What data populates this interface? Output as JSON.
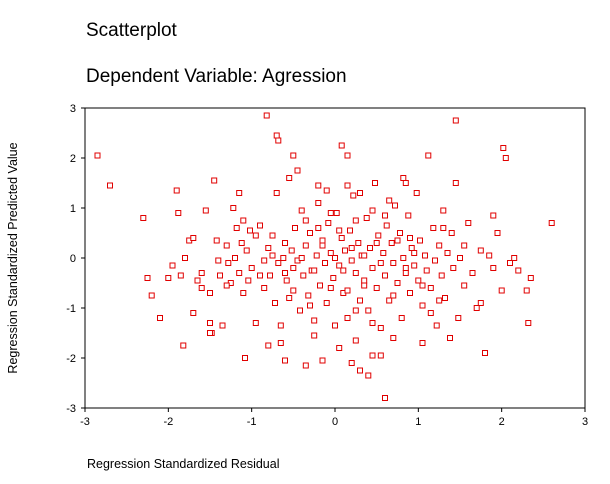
{
  "chart_data": {
    "type": "scatter",
    "title": "Scatterplot",
    "subtitle": "Dependent Variable: Agression",
    "xlabel": "Regression Standardized Residual",
    "ylabel": "Regression Standardized Predicted Value",
    "xlim": [
      -3,
      3
    ],
    "ylim": [
      -3,
      3
    ],
    "xticks": [
      "-3",
      "-2",
      "-1",
      "0",
      "1",
      "2",
      "3"
    ],
    "yticks": [
      "3",
      "2",
      "1",
      "0",
      "-1",
      "-2",
      "-3"
    ],
    "grid": false,
    "legend": "none",
    "marker": "open-square",
    "point_color": "#e00000",
    "points": [
      [
        -2.85,
        2.05
      ],
      [
        -2.7,
        1.45
      ],
      [
        -2.3,
        0.8
      ],
      [
        -2.25,
        -0.4
      ],
      [
        -2.2,
        -0.75
      ],
      [
        -2.1,
        -1.2
      ],
      [
        -2.0,
        -0.4
      ],
      [
        -1.9,
        1.35
      ],
      [
        -1.88,
        0.9
      ],
      [
        -1.85,
        -0.35
      ],
      [
        -1.82,
        -1.75
      ],
      [
        -1.8,
        0.0
      ],
      [
        -1.75,
        0.35
      ],
      [
        -1.7,
        0.4
      ],
      [
        -1.65,
        -0.45
      ],
      [
        -1.6,
        -0.3
      ],
      [
        -1.55,
        0.95
      ],
      [
        -1.5,
        -1.3
      ],
      [
        -1.48,
        -1.5
      ],
      [
        -1.45,
        1.55
      ],
      [
        -1.42,
        0.35
      ],
      [
        -1.4,
        -0.05
      ],
      [
        -1.38,
        -0.35
      ],
      [
        -1.35,
        -1.35
      ],
      [
        -1.3,
        0.25
      ],
      [
        -1.28,
        -0.1
      ],
      [
        -1.25,
        -0.5
      ],
      [
        -1.22,
        1.0
      ],
      [
        -1.2,
        0.0
      ],
      [
        -1.18,
        0.6
      ],
      [
        -1.15,
        -0.3
      ],
      [
        -1.12,
        0.3
      ],
      [
        -1.1,
        -0.7
      ],
      [
        -1.08,
        -2.0
      ],
      [
        -1.06,
        0.15
      ],
      [
        -1.04,
        -0.45
      ],
      [
        -1.02,
        0.55
      ],
      [
        -1.0,
        -0.2
      ],
      [
        -0.95,
        -1.3
      ],
      [
        -0.9,
        0.65
      ],
      [
        -0.85,
        -0.6
      ],
      [
        -0.8,
        0.2
      ],
      [
        -0.78,
        -0.35
      ],
      [
        -0.75,
        0.45
      ],
      [
        -0.72,
        -0.9
      ],
      [
        -0.7,
        1.3
      ],
      [
        -0.68,
        -0.1
      ],
      [
        -0.65,
        -1.7
      ],
      [
        -0.62,
        0.0
      ],
      [
        -0.6,
        0.3
      ],
      [
        -0.58,
        -0.45
      ],
      [
        -0.55,
        -0.8
      ],
      [
        -0.52,
        0.15
      ],
      [
        -0.5,
        -0.2
      ],
      [
        -0.48,
        0.6
      ],
      [
        -0.45,
        -0.05
      ],
      [
        -0.42,
        -1.05
      ],
      [
        -0.4,
        0.95
      ],
      [
        -0.38,
        -0.35
      ],
      [
        -0.35,
        0.25
      ],
      [
        -0.32,
        -0.75
      ],
      [
        -0.3,
        0.5
      ],
      [
        -0.28,
        -0.25
      ],
      [
        -0.25,
        -1.25
      ],
      [
        -0.22,
        0.05
      ],
      [
        -0.2,
        1.1
      ],
      [
        -0.18,
        -0.55
      ],
      [
        -0.15,
        0.35
      ],
      [
        -0.12,
        -0.1
      ],
      [
        -0.1,
        -0.9
      ],
      [
        -0.08,
        0.7
      ],
      [
        -0.05,
        0.1
      ],
      [
        -0.02,
        -0.4
      ],
      [
        0.0,
        0.0
      ],
      [
        0.02,
        0.9
      ],
      [
        0.05,
        -0.15
      ],
      [
        0.08,
        0.4
      ],
      [
        0.1,
        -0.7
      ],
      [
        0.12,
        0.15
      ],
      [
        0.15,
        -1.2
      ],
      [
        0.18,
        0.55
      ],
      [
        0.2,
        -0.05
      ],
      [
        0.22,
        1.25
      ],
      [
        0.25,
        -0.3
      ],
      [
        0.28,
        0.3
      ],
      [
        0.3,
        -0.85
      ],
      [
        0.32,
        0.05
      ],
      [
        0.35,
        -0.45
      ],
      [
        0.38,
        0.8
      ],
      [
        0.4,
        -1.05
      ],
      [
        0.42,
        0.2
      ],
      [
        0.45,
        -0.2
      ],
      [
        0.48,
        1.5
      ],
      [
        0.5,
        -0.6
      ],
      [
        0.52,
        0.45
      ],
      [
        0.55,
        -1.4
      ],
      [
        0.58,
        0.1
      ],
      [
        0.6,
        -0.35
      ],
      [
        0.62,
        0.65
      ],
      [
        0.65,
        -0.85
      ],
      [
        0.68,
        0.3
      ],
      [
        0.7,
        -0.1
      ],
      [
        0.72,
        1.05
      ],
      [
        0.75,
        -0.5
      ],
      [
        0.78,
        0.5
      ],
      [
        0.8,
        -1.2
      ],
      [
        0.82,
        0.0
      ],
      [
        0.85,
        -0.3
      ],
      [
        0.88,
        0.85
      ],
      [
        0.9,
        -0.7
      ],
      [
        0.92,
        0.2
      ],
      [
        0.95,
        -0.15
      ],
      [
        0.98,
        1.3
      ],
      [
        1.0,
        -0.45
      ],
      [
        1.02,
        0.35
      ],
      [
        1.05,
        -0.95
      ],
      [
        1.08,
        0.05
      ],
      [
        1.1,
        -0.25
      ],
      [
        1.12,
        2.05
      ],
      [
        1.15,
        -0.6
      ],
      [
        1.18,
        0.6
      ],
      [
        1.2,
        -0.05
      ],
      [
        1.22,
        -1.35
      ],
      [
        1.25,
        0.25
      ],
      [
        1.28,
        -0.35
      ],
      [
        1.3,
        0.95
      ],
      [
        1.32,
        -0.8
      ],
      [
        1.35,
        0.1
      ],
      [
        1.38,
        -1.6
      ],
      [
        1.4,
        0.5
      ],
      [
        1.42,
        -0.2
      ],
      [
        1.45,
        1.5
      ],
      [
        1.48,
        -1.2
      ],
      [
        1.5,
        0.0
      ],
      [
        1.55,
        -0.55
      ],
      [
        1.6,
        0.7
      ],
      [
        1.65,
        -0.3
      ],
      [
        1.7,
        -1.0
      ],
      [
        1.75,
        0.15
      ],
      [
        1.8,
        -1.9
      ],
      [
        1.85,
        0.05
      ],
      [
        1.9,
        -0.2
      ],
      [
        1.95,
        0.5
      ],
      [
        2.0,
        -0.65
      ],
      [
        2.02,
        2.2
      ],
      [
        2.05,
        2.0
      ],
      [
        2.1,
        -0.1
      ],
      [
        2.15,
        0.0
      ],
      [
        2.2,
        -0.25
      ],
      [
        2.3,
        -0.65
      ],
      [
        2.32,
        -1.3
      ],
      [
        2.35,
        -0.4
      ],
      [
        2.6,
        0.7
      ],
      [
        -0.82,
        2.85
      ],
      [
        -0.7,
        2.45
      ],
      [
        -0.68,
        2.35
      ],
      [
        -0.5,
        2.05
      ],
      [
        0.08,
        2.25
      ],
      [
        0.15,
        2.05
      ],
      [
        1.45,
        2.75
      ],
      [
        0.6,
        -2.8
      ],
      [
        0.3,
        -2.25
      ],
      [
        0.4,
        -2.35
      ],
      [
        0.2,
        -2.1
      ],
      [
        0.45,
        -1.95
      ],
      [
        -0.35,
        -2.15
      ],
      [
        -0.8,
        -1.75
      ],
      [
        -1.5,
        -1.5
      ],
      [
        -0.25,
        -1.55
      ],
      [
        0.05,
        -1.8
      ],
      [
        0.7,
        -1.6
      ],
      [
        1.05,
        -1.7
      ],
      [
        -0.6,
        -2.05
      ],
      [
        -0.15,
        -2.05
      ],
      [
        0.25,
        -1.65
      ],
      [
        0.55,
        -1.95
      ],
      [
        -0.45,
        1.75
      ],
      [
        -0.1,
        1.35
      ],
      [
        0.3,
        1.3
      ],
      [
        0.15,
        1.45
      ],
      [
        -0.55,
        1.6
      ],
      [
        0.65,
        1.15
      ],
      [
        0.82,
        1.6
      ],
      [
        0.85,
        1.5
      ],
      [
        -0.2,
        1.45
      ],
      [
        -1.15,
        1.3
      ],
      [
        -1.5,
        -0.7
      ],
      [
        -1.3,
        -0.55
      ],
      [
        -1.6,
        -0.6
      ],
      [
        -0.9,
        -0.35
      ],
      [
        -0.6,
        -0.3
      ],
      [
        0.35,
        -0.55
      ],
      [
        0.95,
        0.1
      ],
      [
        1.15,
        -1.1
      ],
      [
        -0.25,
        -0.25
      ],
      [
        0.05,
        0.55
      ],
      [
        0.45,
        0.95
      ],
      [
        -0.05,
        0.9
      ],
      [
        0.6,
        0.85
      ],
      [
        -0.35,
        0.75
      ],
      [
        0.25,
        0.75
      ],
      [
        -0.15,
        0.25
      ],
      [
        0.5,
        0.3
      ],
      [
        -0.5,
        -0.65
      ],
      [
        0.15,
        -0.65
      ],
      [
        0.7,
        -0.75
      ],
      [
        -0.75,
        0.05
      ],
      [
        0.35,
        0.05
      ],
      [
        0.85,
        -0.2
      ],
      [
        -0.3,
        -0.95
      ],
      [
        0.25,
        -1.05
      ],
      [
        -0.65,
        -1.35
      ],
      [
        0.0,
        -1.35
      ],
      [
        0.45,
        -1.3
      ],
      [
        1.25,
        -0.85
      ],
      [
        1.75,
        -0.9
      ],
      [
        -1.7,
        -1.1
      ],
      [
        -1.95,
        -0.15
      ],
      [
        -1.1,
        0.75
      ],
      [
        -0.95,
        0.45
      ],
      [
        0.75,
        0.35
      ],
      [
        1.55,
        0.25
      ],
      [
        1.9,
        0.85
      ],
      [
        1.3,
        0.6
      ],
      [
        -0.2,
        0.6
      ],
      [
        0.1,
        -0.25
      ],
      [
        -0.05,
        -0.6
      ],
      [
        0.55,
        -0.1
      ],
      [
        0.9,
        0.4
      ],
      [
        -0.4,
        0.0
      ],
      [
        -0.85,
        -0.05
      ],
      [
        1.05,
        -0.55
      ],
      [
        0.2,
        0.2
      ]
    ]
  }
}
